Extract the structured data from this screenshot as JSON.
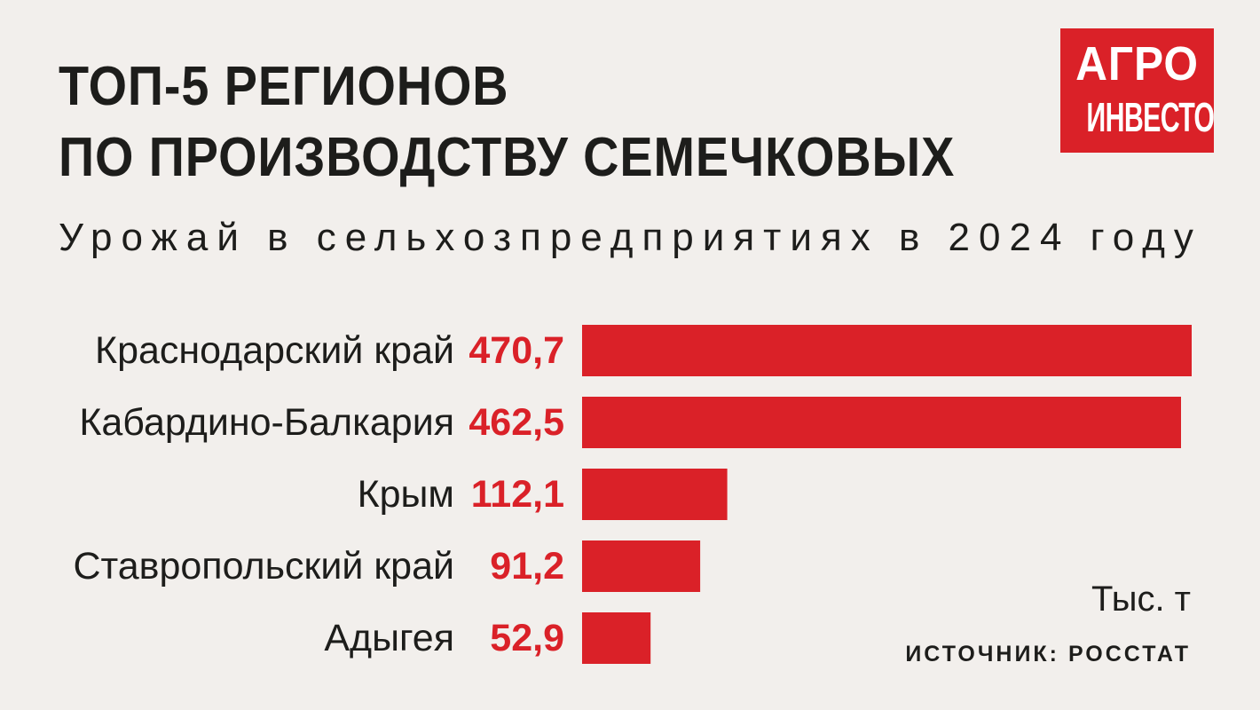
{
  "header": {
    "title_line1": "ТОП-5 РЕГИОНОВ",
    "title_line2": "ПО ПРОИЗВОДСТВУ СЕМЕЧКОВЫХ",
    "subtitle": "Урожай в сельхозпредприятиях в 2024 году"
  },
  "logo": {
    "line1": "АГРО",
    "line2": "ИНВЕСТОР"
  },
  "footer": {
    "unit": "Тыс. т",
    "source": "ИСТОЧНИК: РОССТАТ"
  },
  "colors": {
    "background": "#f2efec",
    "bar": "#da2128",
    "value_text": "#da2128",
    "label_text": "#1d1d1b"
  },
  "chart_data": {
    "type": "bar",
    "orientation": "horizontal",
    "categories": [
      "Краснодарский край",
      "Кабардино-Балкария",
      "Крым",
      "Ставропольский край",
      "Адыгея"
    ],
    "values": [
      470.7,
      462.5,
      112.1,
      91.2,
      52.9
    ],
    "value_labels": [
      "470,7",
      "462,5",
      "112,1",
      "91,2",
      "52,9"
    ],
    "title": "ТОП-5 РЕГИОНОВ ПО ПРОИЗВОДСТВУ СЕМЕЧКОВЫХ",
    "subtitle": "Урожай в сельхозпредприятиях в 2024 году",
    "unit": "Тыс. т",
    "xlim": [
      0,
      470.7
    ],
    "grid": false,
    "legend": "none"
  }
}
